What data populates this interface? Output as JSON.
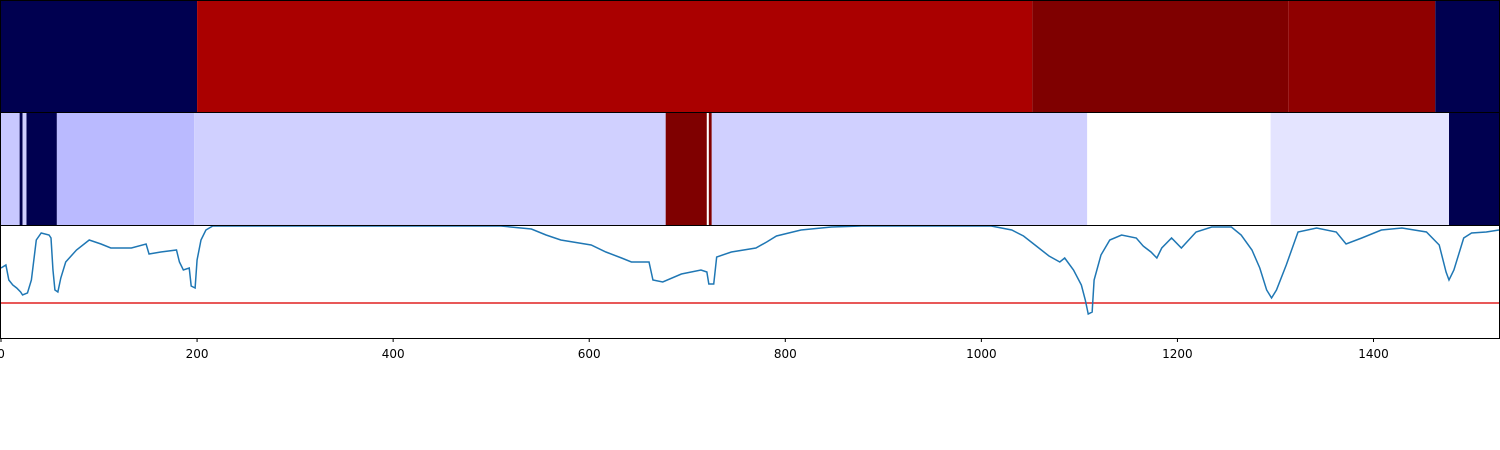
{
  "chart_data": [
    {
      "type": "segments",
      "xlim": [
        0,
        1528
      ],
      "segments": [
        {
          "start": 0,
          "end": 200,
          "color": "#000050"
        },
        {
          "start": 200,
          "end": 1052,
          "color": "#aa0000"
        },
        {
          "start": 1052,
          "end": 1313,
          "color": "#7f0000"
        },
        {
          "start": 1313,
          "end": 1463,
          "color": "#8f0000"
        },
        {
          "start": 1463,
          "end": 1528,
          "color": "#000050"
        }
      ]
    },
    {
      "type": "segments",
      "xlim": [
        0,
        1528
      ],
      "segments": [
        {
          "start": 0,
          "end": 19,
          "color": "#c8c8ff"
        },
        {
          "start": 19,
          "end": 22,
          "color": "#00004c"
        },
        {
          "start": 22,
          "end": 26,
          "color": "#d0d0ff"
        },
        {
          "start": 26,
          "end": 57,
          "color": "#000050"
        },
        {
          "start": 57,
          "end": 197,
          "color": "#babaff"
        },
        {
          "start": 197,
          "end": 678,
          "color": "#d0d0ff"
        },
        {
          "start": 678,
          "end": 720,
          "color": "#7f0000"
        },
        {
          "start": 720,
          "end": 722,
          "color": "#ffffff"
        },
        {
          "start": 722,
          "end": 725,
          "color": "#7f0000"
        },
        {
          "start": 725,
          "end": 1108,
          "color": "#d0d0ff"
        },
        {
          "start": 1108,
          "end": 1295,
          "color": "#ffffff"
        },
        {
          "start": 1295,
          "end": 1477,
          "color": "#e4e4ff"
        },
        {
          "start": 1477,
          "end": 1528,
          "color": "#000050"
        }
      ]
    },
    {
      "type": "line",
      "xlim": [
        0,
        1528
      ],
      "ylim": [
        0,
        112
      ],
      "xticks": [
        0,
        200,
        400,
        600,
        800,
        1000,
        1200,
        1400
      ],
      "hline": 35,
      "hline_color": "#e02020",
      "series": [
        {
          "color": "#1f77b4",
          "x": [
            0,
            5,
            8,
            12,
            16,
            20,
            22,
            27,
            31,
            36,
            41,
            49,
            51,
            53,
            55,
            58,
            61,
            66,
            77,
            90,
            102,
            112,
            133,
            148,
            151,
            163,
            179,
            182,
            186,
            192,
            194,
            198,
            200,
            204,
            209,
            216,
            306,
            510,
            541,
            556,
            571,
            602,
            617,
            633,
            643,
            661,
            665,
            675,
            694,
            714,
            720,
            722,
            727,
            730,
            745,
            770,
            781,
            791,
            816,
            847,
            878,
            1010,
            1031,
            1043,
            1056,
            1069,
            1080,
            1085,
            1094,
            1102,
            1106,
            1109,
            1113,
            1115,
            1122,
            1131,
            1143,
            1158,
            1165,
            1173,
            1179,
            1184,
            1194,
            1204,
            1219,
            1235,
            1255,
            1265,
            1276,
            1284,
            1291,
            1296,
            1301,
            1311,
            1323,
            1342,
            1362,
            1372,
            1388,
            1408,
            1429,
            1454,
            1467,
            1474,
            1477,
            1482,
            1492,
            1500,
            1515,
            1528
          ],
          "values": [
            70,
            73,
            58,
            53,
            50,
            46,
            43,
            45,
            58,
            98,
            105,
            103,
            100,
            68,
            48,
            46,
            60,
            76,
            88,
            98,
            94,
            90,
            90,
            94,
            84,
            86,
            88,
            76,
            68,
            70,
            52,
            50,
            78,
            98,
            108,
            112,
            112,
            112,
            109,
            103,
            98,
            93,
            86,
            80,
            76,
            76,
            58,
            56,
            64,
            68,
            66,
            54,
            54,
            81,
            86,
            90,
            96,
            102,
            108,
            111,
            112,
            112,
            108,
            102,
            92,
            82,
            76,
            80,
            68,
            53,
            38,
            24,
            26,
            58,
            83,
            98,
            103,
            100,
            92,
            86,
            80,
            90,
            100,
            90,
            106,
            111,
            111,
            103,
            88,
            70,
            48,
            40,
            48,
            73,
            106,
            110,
            106,
            94,
            100,
            108,
            110,
            106,
            93,
            66,
            58,
            68,
            100,
            105,
            106,
            108
          ]
        }
      ]
    }
  ]
}
